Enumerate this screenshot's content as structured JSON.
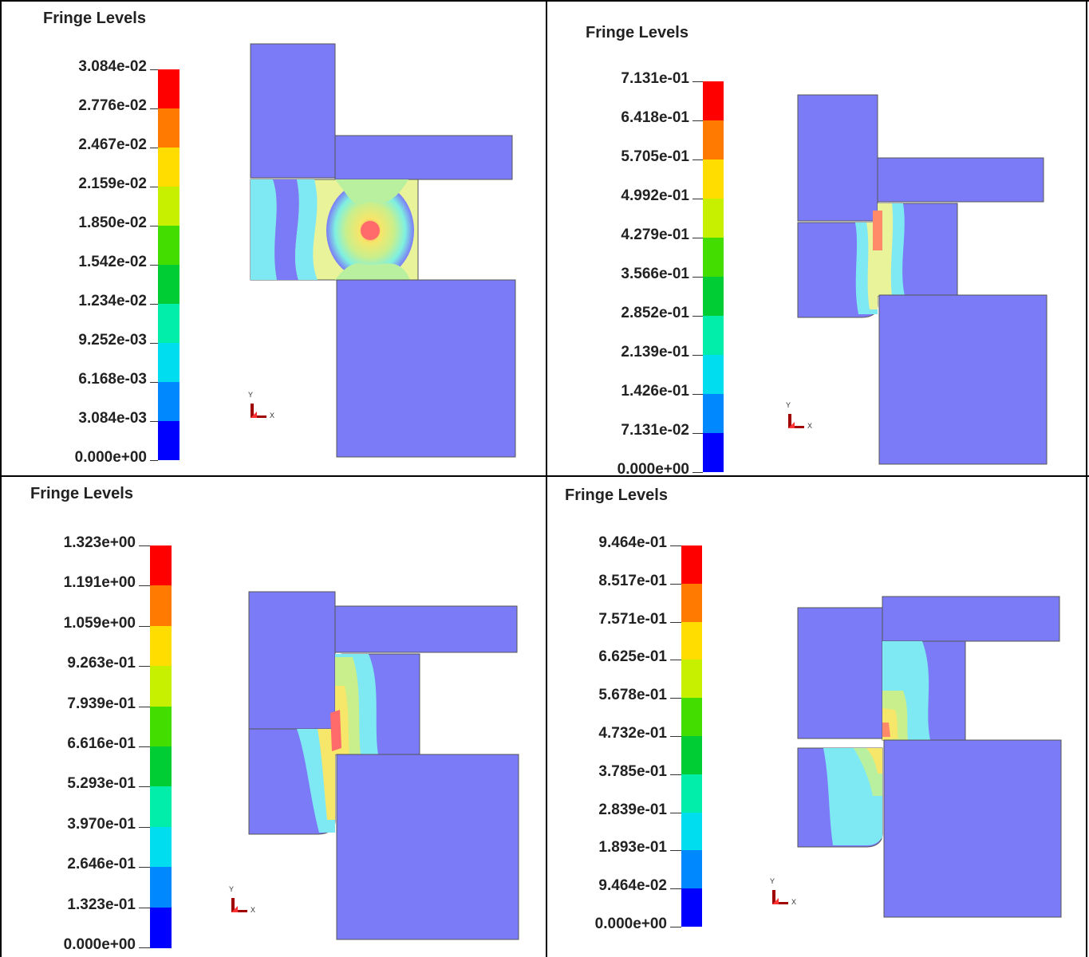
{
  "panels": [
    {
      "title": "Fringe Levels",
      "levels": [
        "3.084e-02",
        "2.776e-02",
        "2.467e-02",
        "2.159e-02",
        "1.850e-02",
        "1.542e-02",
        "1.234e-02",
        "9.252e-03",
        "6.168e-03",
        "3.084e-03",
        "0.000e+00"
      ]
    },
    {
      "title": "Fringe Levels",
      "levels": [
        "7.131e-01",
        "6.418e-01",
        "5.705e-01",
        "4.992e-01",
        "4.279e-01",
        "3.566e-01",
        "2.852e-01",
        "2.139e-01",
        "1.426e-01",
        "7.131e-02",
        "0.000e+00"
      ]
    },
    {
      "title": "Fringe Levels",
      "levels": [
        "1.323e+00",
        "1.191e+00",
        "1.059e+00",
        "9.263e-01",
        "7.939e-01",
        "6.616e-01",
        "5.293e-01",
        "3.970e-01",
        "2.646e-01",
        "1.323e-01",
        "0.000e+00"
      ]
    },
    {
      "title": "Fringe Levels",
      "levels": [
        "9.464e-01",
        "8.517e-01",
        "7.571e-01",
        "6.625e-01",
        "5.678e-01",
        "4.732e-01",
        "3.785e-01",
        "2.839e-01",
        "1.893e-01",
        "9.464e-02",
        "0.000e+00"
      ]
    }
  ],
  "fringe_colors": [
    "#ff0000",
    "#ff7a00",
    "#ffdd00",
    "#c7ef00",
    "#44dd00",
    "#00cc33",
    "#00eeaa",
    "#00ddee",
    "#0088ff",
    "#0000ff"
  ],
  "part_color": "#7b7bf7",
  "axis": {
    "y_label": "Y",
    "x_label": "X"
  }
}
